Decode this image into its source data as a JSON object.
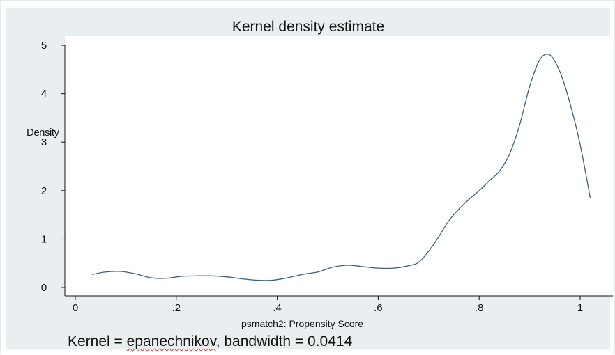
{
  "chart_data": {
    "type": "line",
    "title": "Kernel density estimate",
    "xlabel": "psmatch2: Propensity Score",
    "ylabel": "Density",
    "note": {
      "prefix": "Kernel = ",
      "kernel": "epanechnikov",
      "suffix": ", bandwidth = 0.0414"
    },
    "xlim": [
      0,
      1.03
    ],
    "ylim": [
      0,
      5
    ],
    "x_ticks": [
      {
        "value": 0,
        "label": "0"
      },
      {
        "value": 0.2,
        "label": ".2"
      },
      {
        "value": 0.4,
        "label": ".4"
      },
      {
        "value": 0.6,
        "label": ".6"
      },
      {
        "value": 0.8,
        "label": ".8"
      },
      {
        "value": 1,
        "label": "1"
      }
    ],
    "y_ticks": [
      {
        "value": 0,
        "label": "0"
      },
      {
        "value": 1,
        "label": "1"
      },
      {
        "value": 2,
        "label": "2"
      },
      {
        "value": 3,
        "label": "3"
      },
      {
        "value": 4,
        "label": "4"
      },
      {
        "value": 5,
        "label": "5"
      }
    ],
    "grid": false,
    "legend": "none",
    "line_color": "#3d5f7c",
    "series": [
      {
        "x": [
          0.033,
          0.06,
          0.09,
          0.12,
          0.15,
          0.18,
          0.21,
          0.24,
          0.27,
          0.3,
          0.33,
          0.36,
          0.39,
          0.42,
          0.45,
          0.48,
          0.51,
          0.54,
          0.57,
          0.6,
          0.63,
          0.66,
          0.68,
          0.7,
          0.72,
          0.74,
          0.76,
          0.78,
          0.8,
          0.82,
          0.84,
          0.86,
          0.88,
          0.9,
          0.92,
          0.94,
          0.96,
          0.98,
          1.0,
          1.02
        ],
        "values": [
          0.27,
          0.32,
          0.33,
          0.28,
          0.2,
          0.19,
          0.23,
          0.24,
          0.24,
          0.22,
          0.18,
          0.15,
          0.15,
          0.2,
          0.27,
          0.32,
          0.42,
          0.46,
          0.43,
          0.4,
          0.4,
          0.45,
          0.52,
          0.75,
          1.05,
          1.38,
          1.62,
          1.82,
          2.0,
          2.2,
          2.4,
          2.75,
          3.35,
          4.15,
          4.7,
          4.8,
          4.45,
          3.8,
          2.95,
          1.85
        ]
      }
    ]
  }
}
